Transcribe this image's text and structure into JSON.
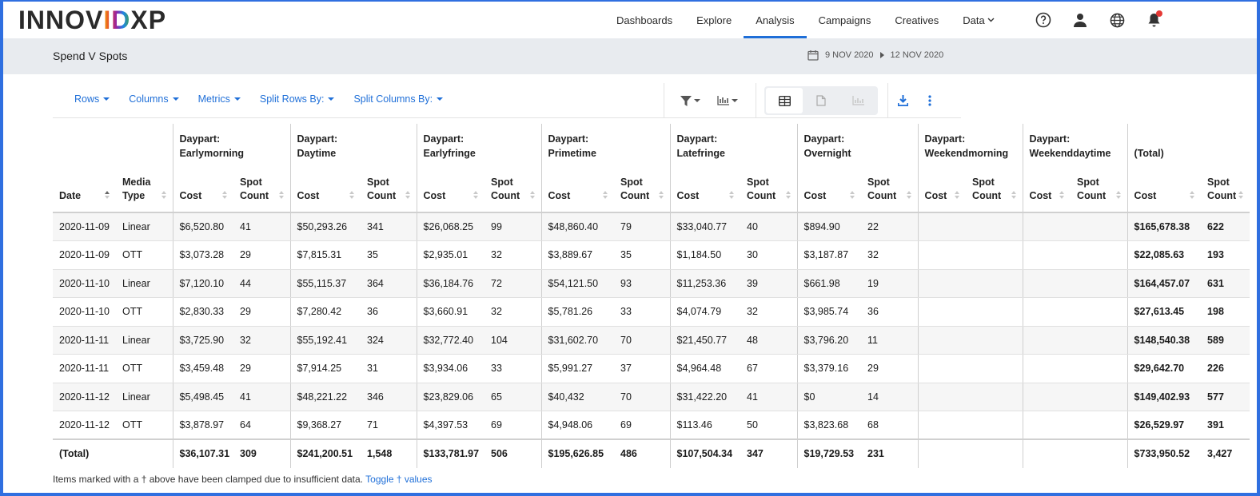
{
  "app": {
    "logo_part1": "INNOV",
    "logo_part2": "ID",
    "logo_part3": "XP",
    "brand_color": "#1f6fd8"
  },
  "nav": {
    "items": [
      {
        "label": "Dashboards",
        "active": false
      },
      {
        "label": "Explore",
        "active": false
      },
      {
        "label": "Analysis",
        "active": true
      },
      {
        "label": "Campaigns",
        "active": false
      },
      {
        "label": "Creatives",
        "active": false
      },
      {
        "label": "Data",
        "active": false
      }
    ],
    "icons": [
      "help-icon",
      "user-icon",
      "globe-icon",
      "bell-icon"
    ],
    "notification_color": "#e53935"
  },
  "report": {
    "title": "Spend V Spots",
    "date_start": "9 NOV 2020",
    "date_end": "12 NOV 2020"
  },
  "toolbar": {
    "rows": "Rows",
    "columns": "Columns",
    "metrics": "Metrics",
    "split_rows": "Split Rows By:",
    "split_columns": "Split Columns By:"
  },
  "table": {
    "dayparts": [
      {
        "label": "Daypart:",
        "name": "Earlymorning"
      },
      {
        "label": "Daypart:",
        "name": "Daytime"
      },
      {
        "label": "Daypart:",
        "name": "Earlyfringe"
      },
      {
        "label": "Daypart:",
        "name": "Primetime"
      },
      {
        "label": "Daypart:",
        "name": "Latefringe"
      },
      {
        "label": "Daypart:",
        "name": "Overnight"
      },
      {
        "label": "Daypart:",
        "name": "Weekendmorning"
      },
      {
        "label": "Daypart:",
        "name": "Weekenddaytime"
      }
    ],
    "total_header": "(Total)",
    "col_date": "Date",
    "col_media_type_1": "Media",
    "col_media_type_2": "Type",
    "col_cost": "Cost",
    "col_spot_1": "Spot",
    "col_spot_2": "Count",
    "rows": [
      {
        "date": "2020-11-09",
        "media": "Linear",
        "cells": [
          "$6,520.80",
          "41",
          "$50,293.26",
          "341",
          "$26,068.25",
          "99",
          "$48,860.40",
          "79",
          "$33,040.77",
          "40",
          "$894.90",
          "22",
          "",
          "",
          "",
          ""
        ],
        "total_cost": "$165,678.38",
        "total_spots": "622"
      },
      {
        "date": "2020-11-09",
        "media": "OTT",
        "cells": [
          "$3,073.28",
          "29",
          "$7,815.31",
          "35",
          "$2,935.01",
          "32",
          "$3,889.67",
          "35",
          "$1,184.50",
          "30",
          "$3,187.87",
          "32",
          "",
          "",
          "",
          ""
        ],
        "total_cost": "$22,085.63",
        "total_spots": "193"
      },
      {
        "date": "2020-11-10",
        "media": "Linear",
        "cells": [
          "$7,120.10",
          "44",
          "$55,115.37",
          "364",
          "$36,184.76",
          "72",
          "$54,121.50",
          "93",
          "$11,253.36",
          "39",
          "$661.98",
          "19",
          "",
          "",
          "",
          ""
        ],
        "total_cost": "$164,457.07",
        "total_spots": "631"
      },
      {
        "date": "2020-11-10",
        "media": "OTT",
        "cells": [
          "$2,830.33",
          "29",
          "$7,280.42",
          "36",
          "$3,660.91",
          "32",
          "$5,781.26",
          "33",
          "$4,074.79",
          "32",
          "$3,985.74",
          "36",
          "",
          "",
          "",
          ""
        ],
        "total_cost": "$27,613.45",
        "total_spots": "198"
      },
      {
        "date": "2020-11-11",
        "media": "Linear",
        "cells": [
          "$3,725.90",
          "32",
          "$55,192.41",
          "324",
          "$32,772.40",
          "104",
          "$31,602.70",
          "70",
          "$21,450.77",
          "48",
          "$3,796.20",
          "11",
          "",
          "",
          "",
          ""
        ],
        "total_cost": "$148,540.38",
        "total_spots": "589"
      },
      {
        "date": "2020-11-11",
        "media": "OTT",
        "cells": [
          "$3,459.48",
          "29",
          "$7,914.25",
          "31",
          "$3,934.06",
          "33",
          "$5,991.27",
          "37",
          "$4,964.48",
          "67",
          "$3,379.16",
          "29",
          "",
          "",
          "",
          ""
        ],
        "total_cost": "$29,642.70",
        "total_spots": "226"
      },
      {
        "date": "2020-11-12",
        "media": "Linear",
        "cells": [
          "$5,498.45",
          "41",
          "$48,221.22",
          "346",
          "$23,829.06",
          "65",
          "$40,432",
          "70",
          "$31,422.20",
          "41",
          "$0",
          "14",
          "",
          "",
          "",
          ""
        ],
        "total_cost": "$149,402.93",
        "total_spots": "577"
      },
      {
        "date": "2020-11-12",
        "media": "OTT",
        "cells": [
          "$3,878.97",
          "64",
          "$9,368.27",
          "71",
          "$4,397.53",
          "69",
          "$4,948.06",
          "69",
          "$113.46",
          "50",
          "$3,823.68",
          "68",
          "",
          "",
          "",
          ""
        ],
        "total_cost": "$26,529.97",
        "total_spots": "391"
      }
    ],
    "totals": {
      "label": "(Total)",
      "cells": [
        "$36,107.31",
        "309",
        "$241,200.51",
        "1,548",
        "$133,781.97",
        "506",
        "$195,626.85",
        "486",
        "$107,504.34",
        "347",
        "$19,729.53",
        "231",
        "",
        "",
        "",
        ""
      ],
      "total_cost": "$733,950.52",
      "total_spots": "3,427"
    }
  },
  "footnote": {
    "text": "Items marked with a † above have been clamped due to insufficient data.",
    "link": "Toggle † values"
  }
}
